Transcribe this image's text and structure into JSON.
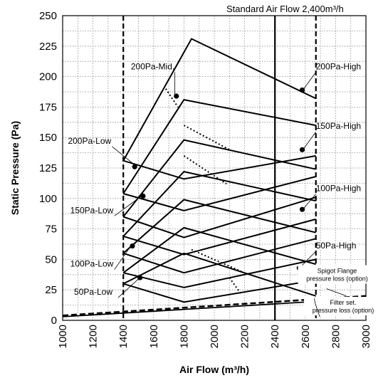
{
  "chart_data": {
    "type": "line",
    "xlabel": "Air Flow (m³/h)",
    "ylabel": "Static Pressure (Pa)",
    "xlim": [
      1000,
      3000
    ],
    "ylim": [
      0,
      250
    ],
    "x_ticks": [
      1000,
      1200,
      1400,
      1600,
      1800,
      2000,
      2200,
      2400,
      2600,
      2800,
      3000
    ],
    "y_ticks": [
      0,
      25,
      50,
      75,
      100,
      125,
      150,
      175,
      200,
      225,
      250
    ],
    "grid": true,
    "grid_style": "dotted",
    "top_label": "Standard Air Flow 2,400m³/h",
    "standard_airflow": 2400,
    "limit_lines": [
      1400,
      2670
    ],
    "fan_curves": [
      {
        "points": [
          [
            1400,
            30
          ],
          [
            1800,
            15
          ],
          [
            2670,
            33
          ]
        ]
      },
      {
        "points": [
          [
            1400,
            39
          ],
          [
            1800,
            27
          ],
          [
            2670,
            50
          ]
        ]
      },
      {
        "points": [
          [
            1400,
            55
          ],
          [
            1800,
            39
          ],
          [
            2670,
            67
          ]
        ]
      },
      {
        "points": [
          [
            1400,
            69
          ],
          [
            1800,
            54
          ],
          [
            2670,
            83
          ]
        ]
      },
      {
        "points": [
          [
            1400,
            85
          ],
          [
            1800,
            68
          ],
          [
            2670,
            101
          ]
        ]
      },
      {
        "points": [
          [
            1400,
            104
          ],
          [
            1800,
            90
          ],
          [
            2670,
            118
          ]
        ]
      },
      {
        "points": [
          [
            1400,
            131
          ],
          [
            1800,
            116
          ],
          [
            2670,
            135
          ]
        ]
      }
    ],
    "pressure_lines": [
      {
        "points": [
          [
            1400,
            30
          ],
          [
            1800,
            55
          ],
          [
            2670,
            20
          ]
        ]
      },
      {
        "points": [
          [
            1400,
            39
          ],
          [
            1800,
            76
          ],
          [
            2670,
            46
          ]
        ]
      },
      {
        "points": [
          [
            1400,
            55
          ],
          [
            1800,
            99
          ],
          [
            2670,
            72
          ]
        ]
      },
      {
        "points": [
          [
            1400,
            69
          ],
          [
            1800,
            122
          ],
          [
            2670,
            98
          ]
        ]
      },
      {
        "points": [
          [
            1400,
            85
          ],
          [
            1800,
            148
          ],
          [
            2670,
            124
          ]
        ]
      },
      {
        "points": [
          [
            1400,
            104
          ],
          [
            1800,
            181
          ],
          [
            2670,
            160
          ]
        ]
      },
      {
        "points": [
          [
            1400,
            131
          ],
          [
            1850,
            231
          ],
          [
            2670,
            182
          ]
        ]
      }
    ],
    "dotted_lines": [
      {
        "points": [
          [
            1680,
            190
          ],
          [
            1760,
            175
          ]
        ]
      },
      {
        "points": [
          [
            1800,
            160
          ],
          [
            2100,
            140
          ]
        ]
      },
      {
        "points": [
          [
            1800,
            135
          ],
          [
            2080,
            112
          ]
        ]
      },
      {
        "points": [
          [
            1850,
            58
          ],
          [
            2180,
            40
          ]
        ]
      },
      {
        "points": [
          [
            2100,
            35
          ],
          [
            2180,
            21
          ]
        ]
      }
    ],
    "spigot_loss": {
      "points": [
        [
          1000,
          4
        ],
        [
          3000,
          20
        ]
      ]
    },
    "filter_loss": {
      "points": [
        [
          1000,
          3
        ],
        [
          3000,
          18
        ]
      ]
    },
    "operating_points": [
      {
        "name": "200Pa-Mid.",
        "x": 1750,
        "y": 184
      },
      {
        "name": "200Pa-High",
        "x": 2580,
        "y": 189
      },
      {
        "name": "200Pa-Low",
        "x": 1475,
        "y": 126
      },
      {
        "name": "150Pa-High",
        "x": 2580,
        "y": 140
      },
      {
        "name": "150Pa-Low",
        "x": 1530,
        "y": 102
      },
      {
        "name": "100Pa-High",
        "x": 2580,
        "y": 91
      },
      {
        "name": "100Pa-Low",
        "x": 1460,
        "y": 61
      },
      {
        "name": "50Pa-High",
        "x": 2560,
        "y": 43
      },
      {
        "name": "50Pa-Low",
        "x": 1510,
        "y": 35
      }
    ],
    "annotations": [
      {
        "text": "200Pa-Mid.",
        "tx": 1450,
        "ty": 206,
        "ax": 1740,
        "ay": 185
      },
      {
        "text": "200Pa-High",
        "tx": 2670,
        "ty": 206,
        "ax": 2590,
        "ay": 190
      },
      {
        "text": "200Pa-Low",
        "tx": 1035,
        "ty": 145,
        "ax": 1470,
        "ay": 128
      },
      {
        "text": "150Pa-High",
        "tx": 2670,
        "ty": 157,
        "ax": 2590,
        "ay": 141
      },
      {
        "text": "150Pa-Low",
        "tx": 1050,
        "ty": 88,
        "ax": 1520,
        "ay": 102
      },
      {
        "text": "100Pa-High",
        "tx": 2670,
        "ty": 106,
        "ax": 2590,
        "ay": 92
      },
      {
        "text": "100Pa-Low",
        "tx": 1050,
        "ty": 44,
        "ax": 1450,
        "ay": 61
      },
      {
        "text": "50Pa-High",
        "tx": 2670,
        "ty": 59,
        "ax": 2570,
        "ay": 44
      },
      {
        "text": "50Pa-Low",
        "tx": 1075,
        "ty": 21,
        "ax": 1500,
        "ay": 34
      }
    ],
    "loss_labels": [
      {
        "lines": [
          "Spigot Flange",
          "pressure loss (option)"
        ],
        "x": 2810,
        "y": 33
      },
      {
        "lines": [
          "Filter set.",
          "pressure loss (option)"
        ],
        "x": 2850,
        "y": 7
      }
    ]
  }
}
